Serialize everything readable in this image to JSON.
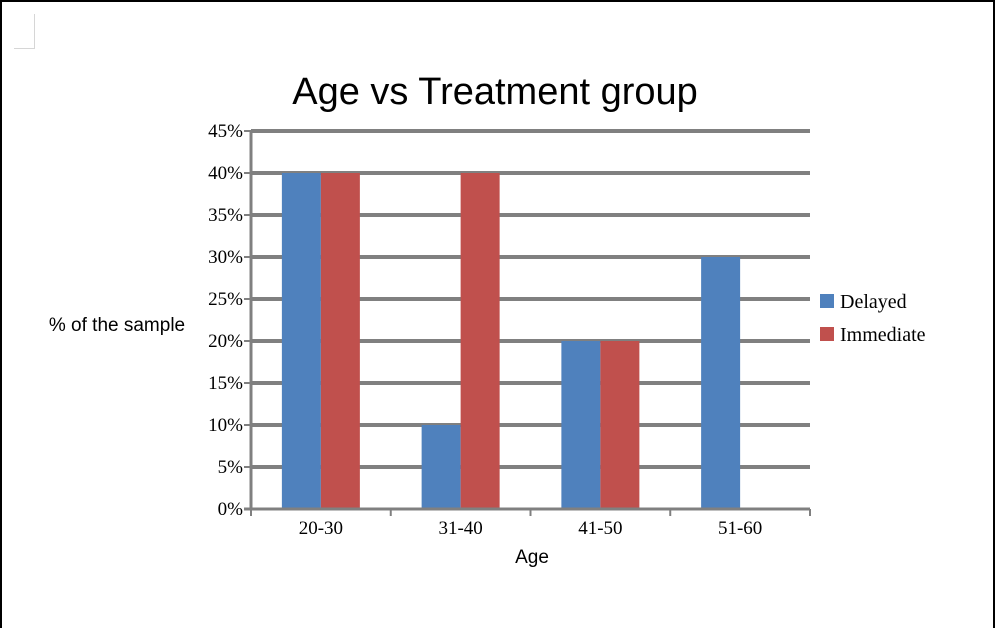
{
  "chart_data": {
    "type": "bar",
    "title": "Age vs Treatment group",
    "xlabel": "Age",
    "ylabel": "% of the sample",
    "categories": [
      "20-30",
      "31-40",
      "41-50",
      "51-60"
    ],
    "series": [
      {
        "name": "Delayed",
        "values": [
          40,
          10,
          20,
          30
        ],
        "color": "#4f81bd"
      },
      {
        "name": "Immediate",
        "values": [
          40,
          40,
          20,
          0
        ],
        "color": "#c0504d"
      }
    ],
    "yticks": [
      "0%",
      "5%",
      "10%",
      "15%",
      "20%",
      "25%",
      "30%",
      "35%",
      "40%",
      "45%"
    ],
    "ylim": [
      0,
      45
    ],
    "grid": true,
    "legend_position": "right"
  }
}
